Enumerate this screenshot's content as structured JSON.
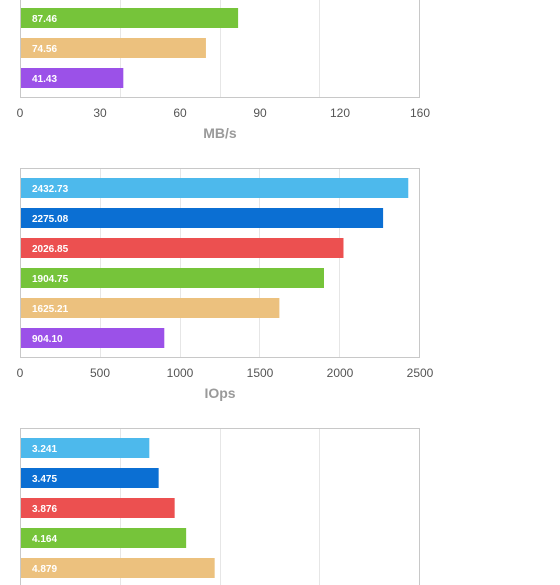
{
  "chart_data": [
    {
      "type": "bar",
      "orientation": "horizontal",
      "xlabel": "MB/s",
      "xlim": [
        0,
        160
      ],
      "ticks": [
        "0",
        "30",
        "60",
        "90",
        "120",
        "160"
      ],
      "gridlines": [
        0,
        40,
        80,
        120,
        160
      ],
      "grid": true,
      "bars": [
        {
          "value": 87.46,
          "label": "87.46",
          "color": "#76c43a"
        },
        {
          "value": 74.56,
          "label": "74.56",
          "color": "#ecc17e"
        },
        {
          "value": 41.43,
          "label": "41.43",
          "color": "#9b51e8"
        }
      ]
    },
    {
      "type": "bar",
      "orientation": "horizontal",
      "xlabel": "IOps",
      "xlim": [
        0,
        2500
      ],
      "ticks": [
        "0",
        "500",
        "1000",
        "1500",
        "2000",
        "2500"
      ],
      "gridlines": [
        0,
        500,
        1000,
        1500,
        2000,
        2500
      ],
      "grid": true,
      "bars": [
        {
          "value": 2432.73,
          "label": "2432.73",
          "color": "#4db9ec"
        },
        {
          "value": 2275.08,
          "label": "2275.08",
          "color": "#0b6fd3"
        },
        {
          "value": 2026.85,
          "label": "2026.85",
          "color": "#ec5050"
        },
        {
          "value": 1904.75,
          "label": "1904.75",
          "color": "#76c43a"
        },
        {
          "value": 1625.21,
          "label": "1625.21",
          "color": "#ecc17e"
        },
        {
          "value": 904.1,
          "label": "904.10",
          "color": "#9b51e8"
        }
      ]
    },
    {
      "type": "bar",
      "orientation": "horizontal",
      "xlim": [
        0,
        10
      ],
      "gridlines": [
        0,
        2.5,
        5,
        7.5,
        10
      ],
      "grid": true,
      "bars": [
        {
          "value": 3.241,
          "label": "3.241",
          "color": "#4db9ec"
        },
        {
          "value": 3.475,
          "label": "3.475",
          "color": "#0b6fd3"
        },
        {
          "value": 3.876,
          "label": "3.876",
          "color": "#ec5050"
        },
        {
          "value": 4.164,
          "label": "4.164",
          "color": "#76c43a"
        },
        {
          "value": 4.879,
          "label": "4.879",
          "color": "#ecc17e"
        }
      ]
    }
  ]
}
